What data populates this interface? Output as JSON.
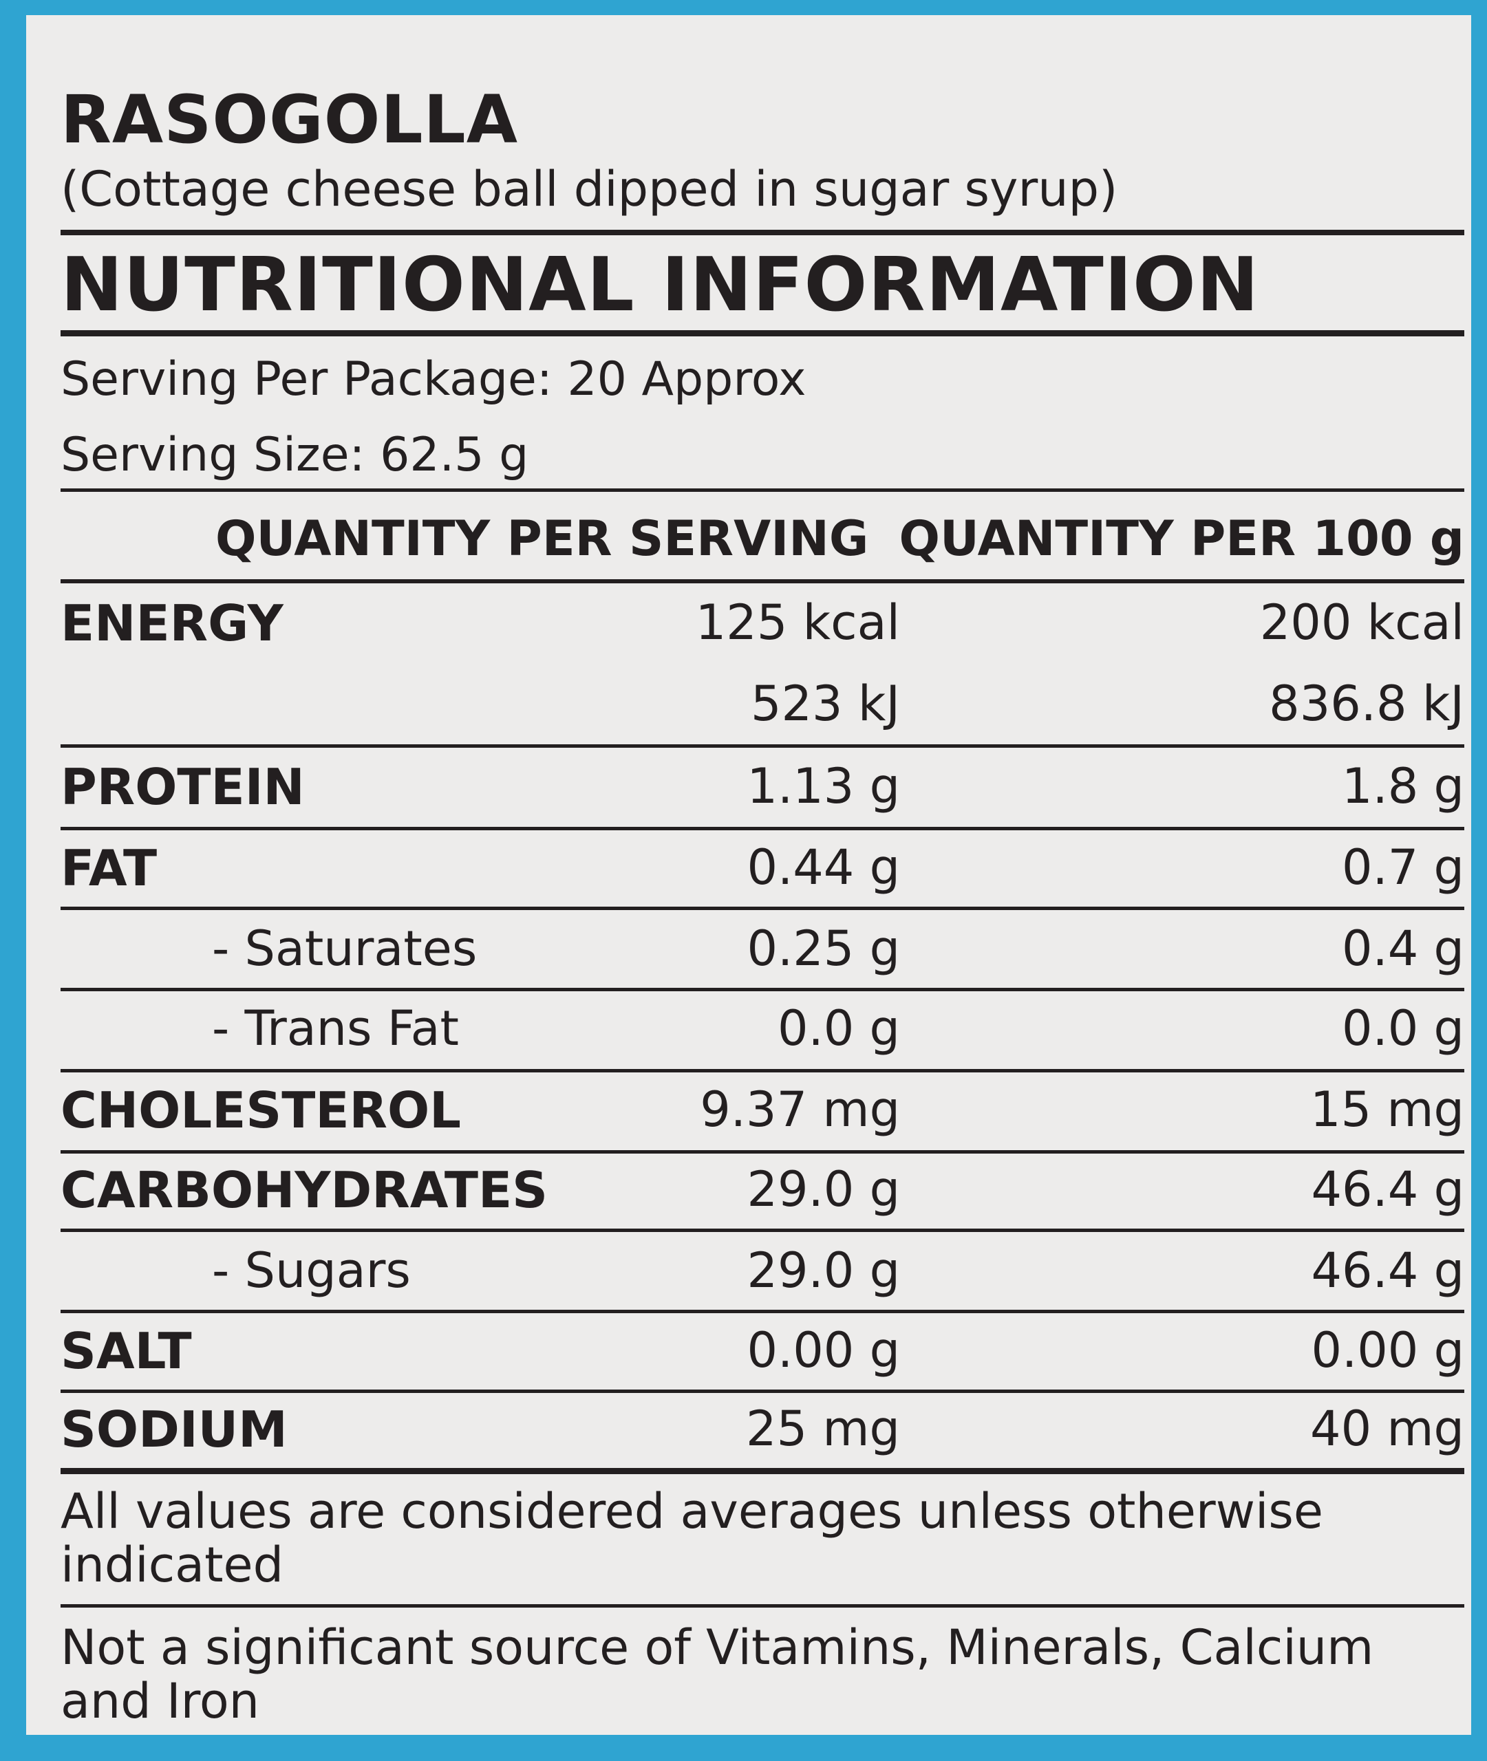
{
  "title": "RASOGOLLA",
  "subtitle": "(Cottage cheese ball dipped in sugar syrup)",
  "heading": "NUTRITIONAL INFORMATION",
  "serving_per_package": "Serving Per Package: 20 Approx",
  "serving_size": "Serving Size: 62.5 g",
  "columns": {
    "per_serving": "QUANTITY PER SERVING",
    "per_100g": "QUANTITY PER 100 g"
  },
  "rows": [
    {
      "label": "ENERGY",
      "per_serving": "125 kcal",
      "per_100g": "200 kcal"
    },
    {
      "label": "",
      "per_serving": "523 kJ",
      "per_100g": "836.8 kJ"
    },
    {
      "label": "PROTEIN",
      "per_serving": "1.13 g",
      "per_100g": "1.8 g"
    },
    {
      "label": "FAT",
      "per_serving": "0.44 g",
      "per_100g": "0.7 g"
    },
    {
      "label": "- Saturates",
      "per_serving": "0.25 g",
      "per_100g": "0.4 g"
    },
    {
      "label": "- Trans Fat",
      "per_serving": "0.0 g",
      "per_100g": "0.0 g"
    },
    {
      "label": "CHOLESTEROL",
      "per_serving": "9.37 mg",
      "per_100g": "15 mg"
    },
    {
      "label": "CARBOHYDRATES",
      "per_serving": "29.0 g",
      "per_100g": "46.4 g"
    },
    {
      "label": "- Sugars",
      "per_serving": "29.0 g",
      "per_100g": "46.4 g"
    },
    {
      "label": "SALT",
      "per_serving": "0.00 g",
      "per_100g": "0.00 g"
    },
    {
      "label": "SODIUM",
      "per_serving": "25 mg",
      "per_100g": "40 mg"
    }
  ],
  "note_averages": "All values are considered averages unless otherwise indicated",
  "note_sources": "Not a significant source of Vitamins, Minerals, Calcium and Iron"
}
